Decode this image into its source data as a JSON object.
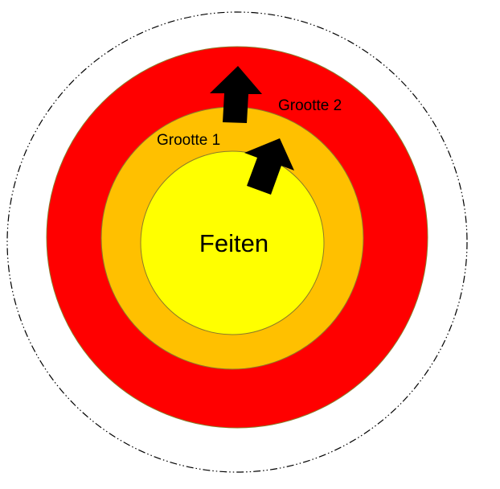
{
  "diagram": {
    "labels": {
      "center": "Feiten",
      "ring1": "Grootte 1",
      "ring2": "Grootte 2"
    },
    "colors": {
      "outer_ring": "#ff0000",
      "middle_ring": "#ffc000",
      "inner_core": "#ffff00",
      "ring_stroke": "#8a7a2a",
      "boundary": "#000000",
      "arrow": "#000000"
    },
    "icons": [
      "arrow-up-icon",
      "arrow-up-right-icon"
    ]
  }
}
